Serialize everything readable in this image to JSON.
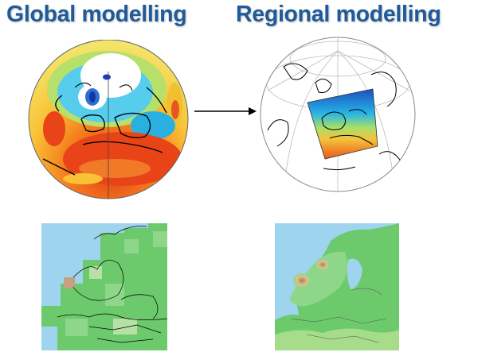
{
  "headings": {
    "global": "Global modelling",
    "regional": "Regional modelling"
  },
  "colors": {
    "heading": "#1f5a99",
    "sea": "#9ed4ee",
    "land_low": "#6cca6c",
    "land_high": "#b07a5a",
    "warm": "#e8581e",
    "cold": "#2f6fd0"
  }
}
